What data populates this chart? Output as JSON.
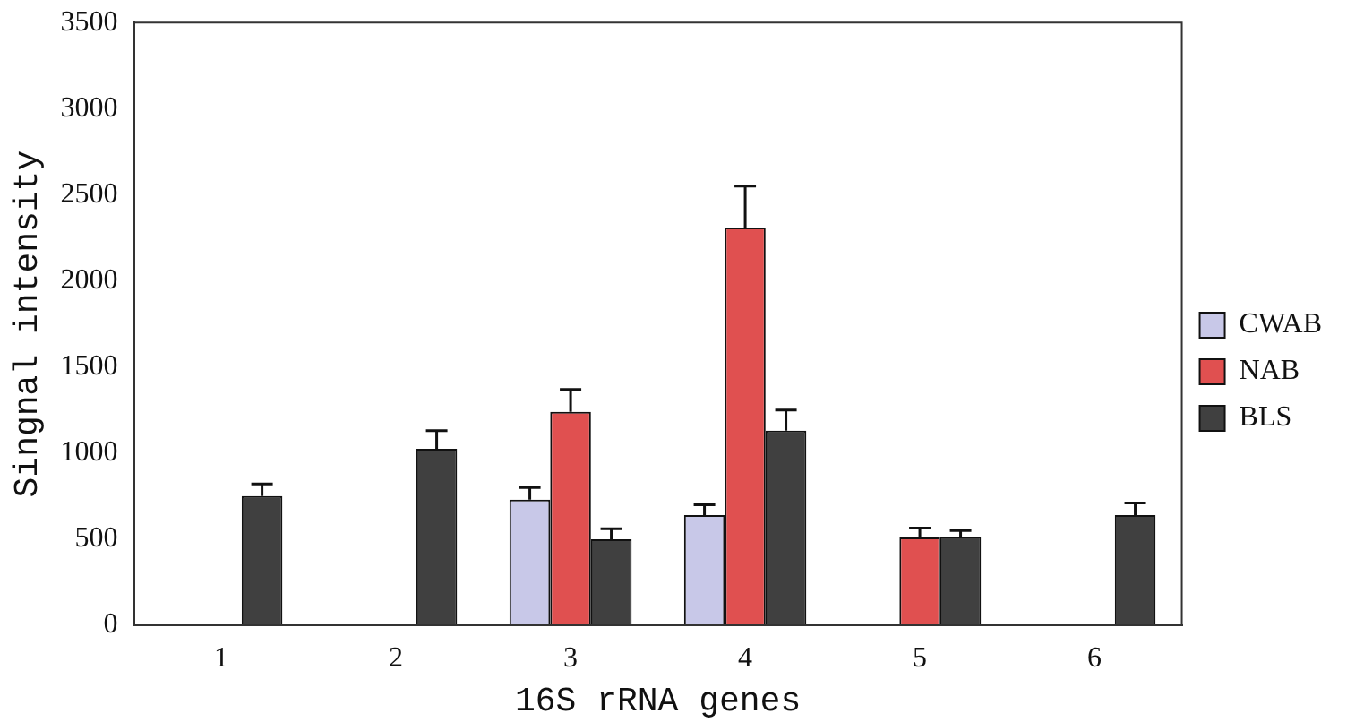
{
  "chart_data": {
    "type": "bar",
    "xlabel": "16S rRNA genes",
    "ylabel": "Singnal intensity",
    "categories": [
      "1",
      "2",
      "3",
      "4",
      "5",
      "6"
    ],
    "series": [
      {
        "name": "CWAB",
        "color": "#c8c8e8",
        "values": [
          null,
          null,
          730,
          640,
          null,
          null
        ],
        "errors": [
          null,
          null,
          [
            730,
            800
          ],
          [
            640,
            700
          ],
          null,
          null
        ]
      },
      {
        "name": "NAB",
        "color": "#e05050",
        "values": [
          null,
          null,
          1240,
          2310,
          510,
          null
        ],
        "errors": [
          null,
          null,
          [
            1240,
            1370
          ],
          [
            2310,
            2550
          ],
          [
            510,
            565
          ],
          null
        ]
      },
      {
        "name": "BLS",
        "color": "#404040",
        "values": [
          750,
          1025,
          500,
          1130,
          515,
          640
        ],
        "errors": [
          [
            750,
            820
          ],
          [
            1025,
            1130
          ],
          [
            500,
            560
          ],
          [
            1130,
            1250
          ],
          [
            515,
            550
          ],
          [
            640,
            710
          ]
        ]
      }
    ],
    "ylim": [
      0,
      3500
    ],
    "yticks": [
      0,
      500,
      1000,
      1500,
      2000,
      2500,
      3000,
      3500
    ],
    "grid": false,
    "legend": "right"
  }
}
